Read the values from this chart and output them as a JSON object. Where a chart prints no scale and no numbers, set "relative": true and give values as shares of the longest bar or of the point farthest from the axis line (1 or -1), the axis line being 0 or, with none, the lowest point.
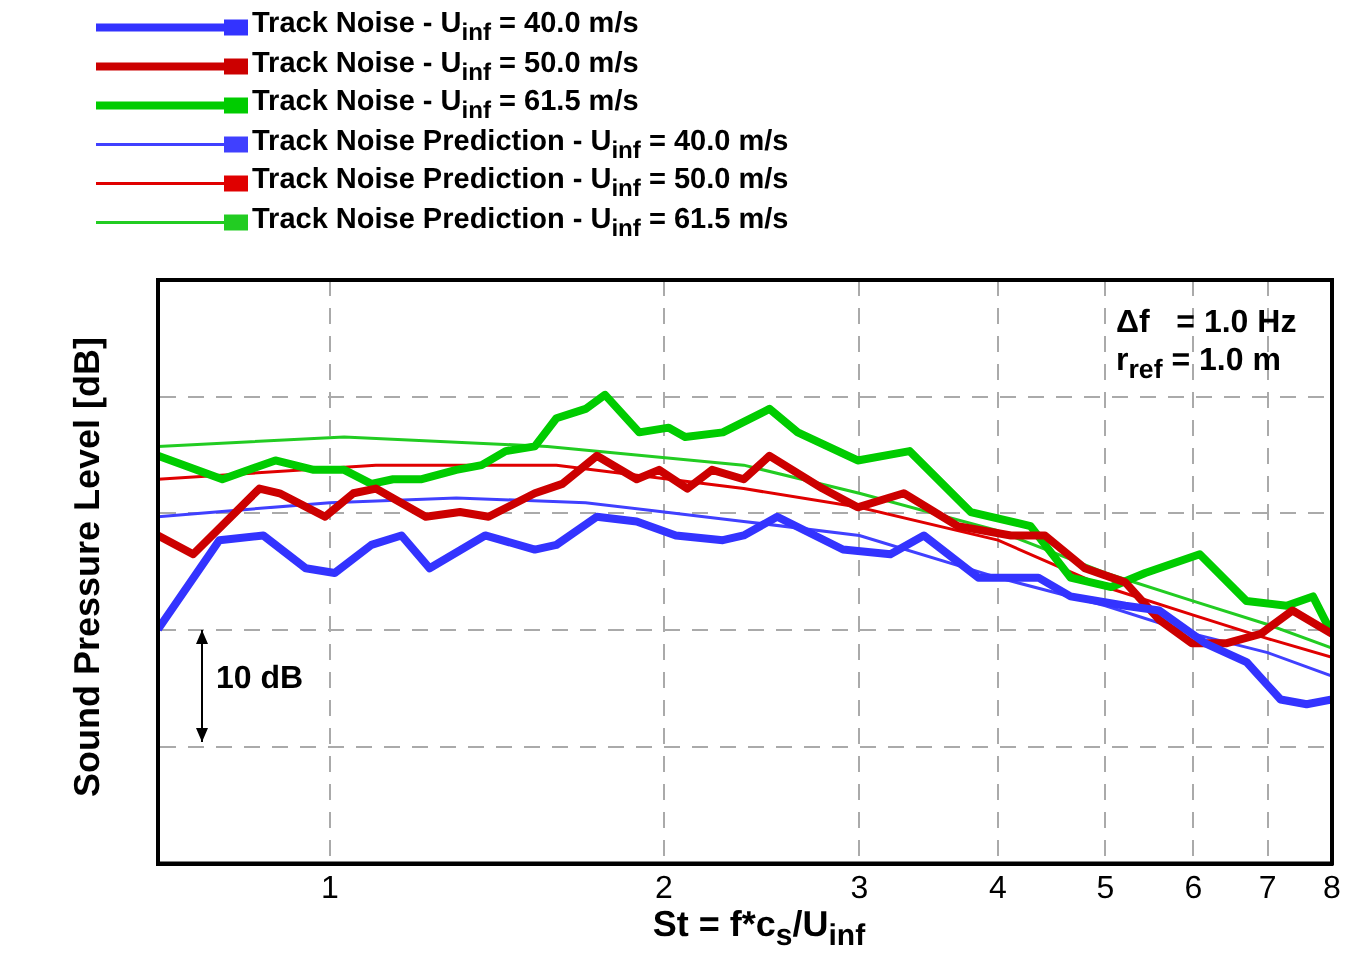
{
  "chart_data": {
    "type": "line",
    "xlabel": "St = f*c$_{s}$/U$_{inf}$",
    "ylabel": "Sound Pressure Level [dB]",
    "log": "x",
    "xlim": [
      0.7,
      8
    ],
    "xticks": [
      1,
      2,
      3,
      4,
      5,
      6,
      7,
      8
    ],
    "relative": true,
    "grid": true,
    "legend": "top left",
    "annotations": [
      "Δf   = 1.0 Hz",
      "r$_{ref}$ = 1.0 m",
      "10 dB"
    ],
    "series": [
      {
        "name": "Track Noise - U$_{inf}$ = 40.0 m/s",
        "color": "#3333ff",
        "x": [
          0.7,
          0.795,
          0.871,
          0.951,
          1.01,
          1.09,
          1.16,
          1.23,
          1.38,
          1.53,
          1.6,
          1.74,
          1.89,
          2.05,
          2.26,
          2.36,
          2.53,
          2.9,
          3.2,
          3.43,
          3.84,
          4.35,
          4.65,
          5.21,
          5.59,
          6.15,
          6.7,
          7.19,
          7.59,
          8
        ],
        "values": [
          0.5,
          0.69,
          0.7,
          0.63,
          0.62,
          0.68,
          0.7,
          0.63,
          0.7,
          0.67,
          0.68,
          0.74,
          0.73,
          0.7,
          0.69,
          0.7,
          0.74,
          0.67,
          0.66,
          0.7,
          0.61,
          0.61,
          0.57,
          0.55,
          0.54,
          0.47,
          0.43,
          0.35,
          0.34,
          0.35
        ]
      },
      {
        "name": "Track Noise - U$_{inf}$ = 50.0 m/s",
        "color": "#cc0000",
        "x": [
          0.7,
          0.753,
          0.864,
          0.901,
          0.99,
          1.05,
          1.1,
          1.22,
          1.31,
          1.39,
          1.53,
          1.62,
          1.74,
          1.89,
          1.98,
          2.1,
          2.21,
          2.36,
          2.49,
          2.78,
          2.99,
          3.29,
          3.68,
          4.11,
          4.41,
          4.79,
          5.21,
          5.59,
          5.98,
          6.42,
          6.9,
          7.37,
          8
        ],
        "values": [
          0.7,
          0.66,
          0.8,
          0.79,
          0.74,
          0.79,
          0.8,
          0.74,
          0.75,
          0.74,
          0.79,
          0.81,
          0.87,
          0.82,
          0.84,
          0.8,
          0.84,
          0.82,
          0.87,
          0.8,
          0.76,
          0.79,
          0.72,
          0.7,
          0.7,
          0.63,
          0.6,
          0.52,
          0.47,
          0.47,
          0.49,
          0.54,
          0.49
        ]
      },
      {
        "name": "Track Noise - U$_{inf}$ = 61.5 m/s",
        "color": "#00cc00",
        "x": [
          0.7,
          0.8,
          0.893,
          0.967,
          1.03,
          1.09,
          1.14,
          1.21,
          1.3,
          1.37,
          1.44,
          1.53,
          1.6,
          1.7,
          1.77,
          1.9,
          2.02,
          2.09,
          2.26,
          2.49,
          2.64,
          2.99,
          3.33,
          3.78,
          4.28,
          4.65,
          5.06,
          5.43,
          6.08,
          6.7,
          7.28,
          7.69,
          8
        ],
        "values": [
          0.87,
          0.82,
          0.86,
          0.84,
          0.84,
          0.81,
          0.82,
          0.82,
          0.84,
          0.85,
          0.88,
          0.89,
          0.95,
          0.97,
          1,
          0.92,
          0.93,
          0.91,
          0.92,
          0.97,
          0.92,
          0.86,
          0.88,
          0.75,
          0.72,
          0.61,
          0.59,
          0.62,
          0.66,
          0.56,
          0.55,
          0.57,
          0.49
        ]
      },
      {
        "name": "Track Noise Prediction - U$_{inf}$ = 40.0 m/s",
        "color": "#4040ff",
        "x": [
          0.7,
          1,
          1.3,
          1.7,
          2.36,
          3,
          4,
          5,
          6,
          7,
          8
        ],
        "values": [
          0.74,
          0.77,
          0.78,
          0.77,
          0.73,
          0.7,
          0.61,
          0.55,
          0.49,
          0.45,
          0.4
        ]
      },
      {
        "name": "Track Noise Prediction - U$_{inf}$ = 50.0 m/s",
        "color": "#e00000",
        "x": [
          0.7,
          1.1,
          1.6,
          2.36,
          3,
          4,
          5,
          6,
          7,
          8
        ],
        "values": [
          0.82,
          0.85,
          0.85,
          0.8,
          0.76,
          0.69,
          0.59,
          0.53,
          0.48,
          0.44
        ]
      },
      {
        "name": "Track Noise Prediction - U$_{inf}$ = 61.5 m/s",
        "color": "#22cc22",
        "x": [
          0.7,
          1.03,
          1.57,
          2.36,
          3,
          4,
          5,
          6,
          7,
          8
        ],
        "values": [
          0.89,
          0.91,
          0.89,
          0.85,
          0.79,
          0.71,
          0.62,
          0.56,
          0.51,
          0.46
        ]
      }
    ]
  }
}
